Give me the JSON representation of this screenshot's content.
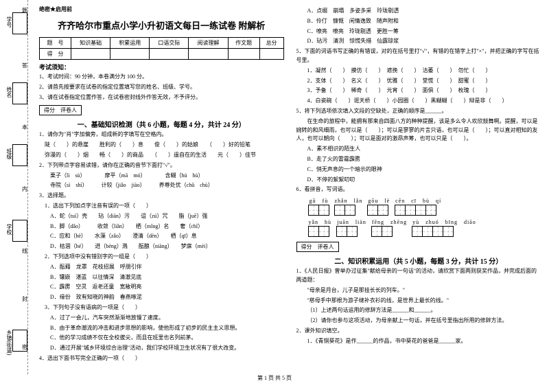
{
  "secret": "绝密★启用前",
  "title": "齐齐哈尔市重点小学小升初语文每日一练试卷 附解析",
  "score_table": {
    "headers": [
      "题　号",
      "知识基础",
      "积累运用",
      "口语交际",
      "阅读理解",
      "作文题",
      "总分"
    ],
    "row_label": "得　分"
  },
  "notice_title": "考试须知：",
  "notices": [
    "1、考试时间：90 分钟，本卷满分为 100 分。",
    "2、请首先按要求在试卷的指定位置填写您的姓名、班级、学号。",
    "3、请在试卷指定位置作答，在试卷密封线外作答无效，不予评分。"
  ],
  "score_label": "得分　评卷人",
  "part1_title": "一、基础知识检测（共 6 小题，每题 4 分，共计 24 分）",
  "q1": {
    "stem": "1．请你为\"肖\"字加偏旁，组成新的字填写在空格内。",
    "lines": [
      "陡（　　）的悬崖　　胜利的（　　）息　　俊（　　）的姑娘　　（　　）好的铅笔",
      "弥漫的（　　）烟　　畅（　　）的商品　　（　　）遥自在的生活　　元（　　）佳节"
    ]
  },
  "q2": {
    "stem": "2．下列带点字容易读错，请你在正确的音节下面打\"√\"。",
    "lines": [
      "栗子（lì　sù）　　　　摩平（mā　mó）　　　　含糊（hú　hù）",
      "寺院（sì　shì）　　　计较（jiǎo　jiào）　　　养尊处优（chǔ　chù）"
    ]
  },
  "q3": {
    "stem": "3．选择题。",
    "sub1": "1．选出下列加点字注音有误的一项（　　）",
    "opts1": [
      "A．蛇（tuì）壳　　玷（diàn）污　　诅（zú）咒　　脂（juē）强",
      "B．脚（dǎo）　　　收敛（liǎn）　　栖（mǐng）名　　奢（chǐ）",
      "C．应和（hè）　　水藻（zǎo）　　澄清（dèn）　　栖（qī）息",
      "D．枯涸（hé）　　迸（bèng）溅　　酝酿（niàng）　　梦寐（mèi）"
    ],
    "sub2": "2．下列选项中没有错别字的一组是（　　）",
    "opts2": [
      "A．酝藉　龙罩　花枝招展　呼朋引伴",
      "B．镶嵌　湛蓝　以往情深　清澈见底",
      "C．霹雳　空灵　返老还童　宽敞明亮",
      "D．缘份　玫有知晓的神韵　春燕啄泥"
    ],
    "sub3": "3．下列句子没有语病的一项是（　　）",
    "opts3": [
      "A．过了一会儿，汽车突然渐渐地放慢了速度。",
      "B．由于革命潮流的冲击和进步思想的影响，使他形成了初步的民主主义思想。",
      "C．他的学习成绩不仅在全校拔尖，而且在班里也名列前茅。",
      "D．通过开展\"城乡环境综合治理\"活动，我们学校环境卫生状况有了很大改变。"
    ]
  },
  "q4_stem": "4．选出下面书写完全正确的一项（　　）",
  "q4_opts": [
    "A．点缀　崩塌　多姿多采　玲珑剔透",
    "B．伶仃　慷慨　闲情逸致　随声附和",
    "C．嘹亮　嘹亮　玲珑剔透　更胜一筹",
    "D．玷污　清冽　惊慌失措　仙露琼浆"
  ],
  "q5": {
    "stem": "5．下面的词语书写正确的有错误，对的在括号里打\"√\"，有错的在错字上打\"×\"，并把正确的字写在括号里。",
    "lines": [
      "1．凝然（　　）　摸仿（　　）　遮挽（　　）　沽萎（　　）　勿忙（　　）",
      "2．支体（　　）　名义（　　）　优雅（　　）　堂慌（　　）　甜蜜（　　）",
      "3．予备（　　）　稀奇（　　）　元宵（　　）　面俱（　　）　枚瑰（　　）",
      "4．白瓷碗（　　）诳天桥（　　）小园圈（　　）黑糊糊（　　）辩是非（　　）"
    ]
  },
  "q6": {
    "stem": "5．将下列选项依次填入文段的空缺处，正确的顺序是______。",
    "text": "在生命的旅程中，能拥有那来自四面八方的种种提醒，该是多么令人欢欣鼓舞啊。提醒，可以是婉转的和风细雨，也可以是（　　）；可以是寥寥的片言只语，也可以是（　　）；可以直对相知的友人，也可以朝向（　　）；可以是面对的激昂声筹，也可以只是（　　）。",
    "opts": [
      "A．素不相识的陌生人",
      "B．走了火的雷霆霹雳",
      "C．悄无声息的一个暗示的眼神",
      "D．不停的絮絮叨叨"
    ]
  },
  "q7_stem": "6．看拼音，写词语。",
  "pinyin": [
    [
      "gū　fù",
      2
    ],
    [
      "zhǎn　lǎn",
      2
    ],
    [
      "gōu　lè",
      2
    ],
    [
      "cēn　cī　bù　qí",
      4
    ],
    [
      "yǎn　hù",
      2
    ],
    [
      "juān　liàn",
      2
    ],
    [
      "fēng　zhēng",
      2
    ],
    [
      "yù　zhuó　bīng　diāo",
      4
    ]
  ],
  "part2_title": "二、知识积累运用（共 5 小题，每题 3 分，共计 15 分）",
  "p2q1": {
    "stem": "1．《人民日报》曾举办过征集\"献给母亲的一句话\"的活动，请欣赏下面两则获奖作品，并完成后面的两道题：",
    "lines": [
      "\"母亲是月台，儿子是那挂长长的列车。\"",
      "\"慈母手中那根为游子缝补衣衫的线，是世界上最长的线。\"",
      "（1）上述两句话运用的修辞方法是______和______。",
      "（2）请你也参与这项活动，为母亲献上一句话，并在括号里指出所用的修辞方法。"
    ]
  },
  "p2q2": "2．课外知识填空。",
  "p2q2_line": "1．《青铜葵花》是作______的作品，书中葵花的爸爸是______家。",
  "binding": {
    "labels": [
      "学号",
      "姓名",
      "班级",
      "学校",
      "乡镇(街道)"
    ],
    "chars": [
      "题",
      "答",
      "本",
      "内",
      "线",
      "封",
      "密"
    ]
  },
  "footer": "第 1 页 共 5 页"
}
